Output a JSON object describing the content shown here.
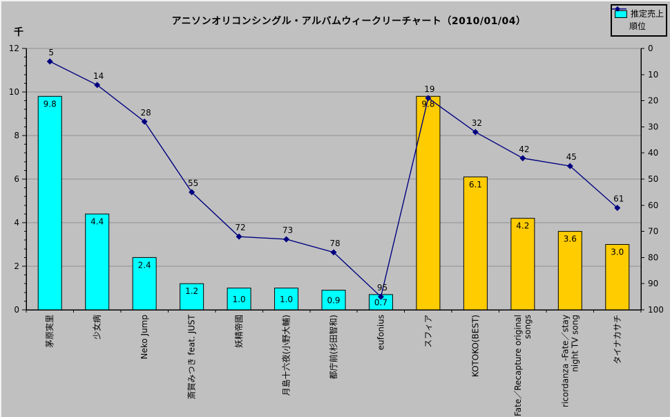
{
  "chart_data": {
    "type": "bar+line",
    "title": "アニソンオリコンシングル・アルバムウィークリーチャート（2010/01/04）",
    "categories": [
      "茅原実里",
      "少女病",
      "Neko Jump",
      "斎賀みつき feat. JUST",
      "妖精帝國",
      "月島十六夜(小野大輔)",
      "都庁前(杉田智和)",
      "eufonius",
      "スフィア",
      "KOTOKO(BEST)",
      "Fate／Recapture original\nsongs",
      "ricordanza -Fate／stay\nnight TV song",
      "タイナカサチ"
    ],
    "series": [
      {
        "name": "推定売上",
        "type": "bar",
        "axis": "left",
        "values": [
          9.8,
          4.4,
          2.4,
          1.2,
          1.0,
          1.0,
          0.9,
          0.7,
          9.8,
          6.1,
          4.2,
          3.6,
          3.0
        ],
        "bar_colors": [
          "#00ffff",
          "#00ffff",
          "#00ffff",
          "#00ffff",
          "#00ffff",
          "#00ffff",
          "#00ffff",
          "#00ffff",
          "#ffcc00",
          "#ffcc00",
          "#ffcc00",
          "#ffcc00",
          "#ffcc00"
        ]
      },
      {
        "name": "順位",
        "type": "line",
        "axis": "right",
        "values": [
          5,
          14,
          28,
          55,
          72,
          73,
          78,
          95,
          19,
          32,
          42,
          45,
          61
        ],
        "color": "#000080"
      }
    ],
    "left_axis": {
      "title": "千",
      "min": 0,
      "max": 12,
      "major_step": 2,
      "minor_step": 0.4
    },
    "right_axis": {
      "min": 0,
      "max": 100,
      "major_step": 10,
      "reversed_rank": true
    },
    "grid": "horizontal",
    "legend_position": "top-right",
    "legend": [
      {
        "label": "推定売上",
        "type": "bar",
        "color": "#00ffff"
      },
      {
        "label": "順位",
        "type": "line",
        "color": "#000080"
      }
    ],
    "colors": {
      "background": "#c0c0c0",
      "gridline": "#909090",
      "axis": "#000000",
      "text": "#000000",
      "bar_cyan": "#00ffff",
      "bar_gold": "#ffcc00",
      "line_navy": "#000080"
    }
  }
}
